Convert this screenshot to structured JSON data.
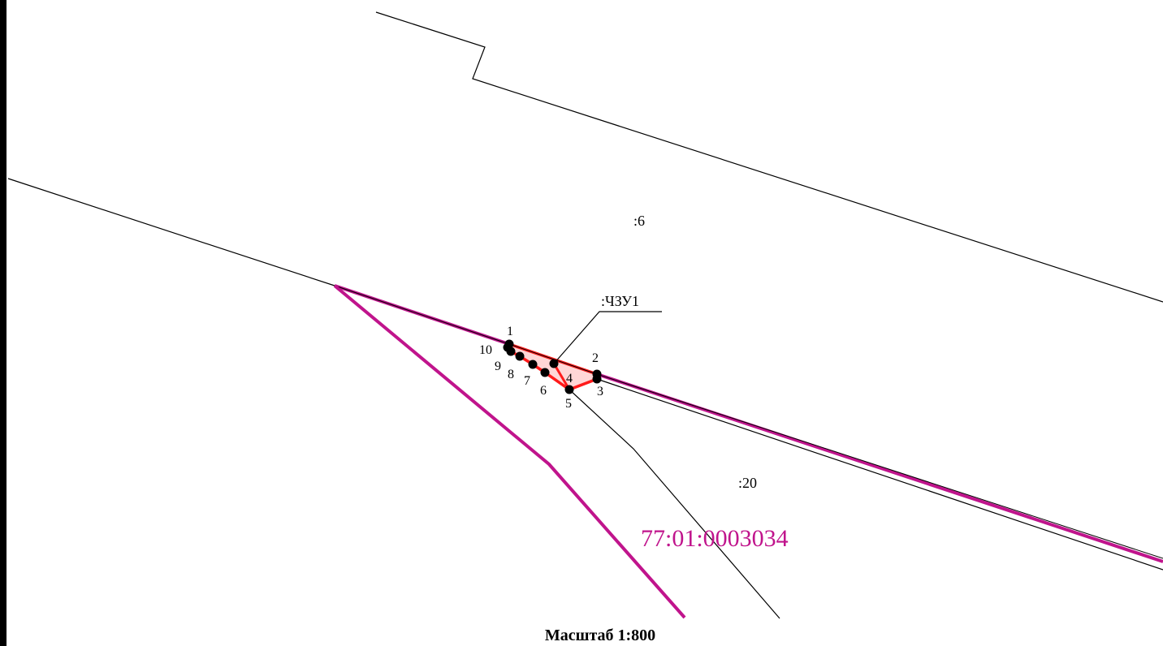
{
  "colors": {
    "boundary": "#000000",
    "quarter_boundary": "#c0148c",
    "new_part": "#ff1a1a",
    "point": "#000000",
    "quarter_label": "#c0148c"
  },
  "parcels": {
    "p6": ":6",
    "p20": ":20",
    "new_part": ":ЧЗУ1"
  },
  "quarter_number": "77:01:0003034",
  "points": [
    {
      "label": "1"
    },
    {
      "label": "2"
    },
    {
      "label": "3"
    },
    {
      "label": "4"
    },
    {
      "label": "5"
    },
    {
      "label": "6"
    },
    {
      "label": "7"
    },
    {
      "label": "8"
    },
    {
      "label": "9"
    },
    {
      "label": "10"
    }
  ],
  "scale_text": "Масштаб 1:800"
}
